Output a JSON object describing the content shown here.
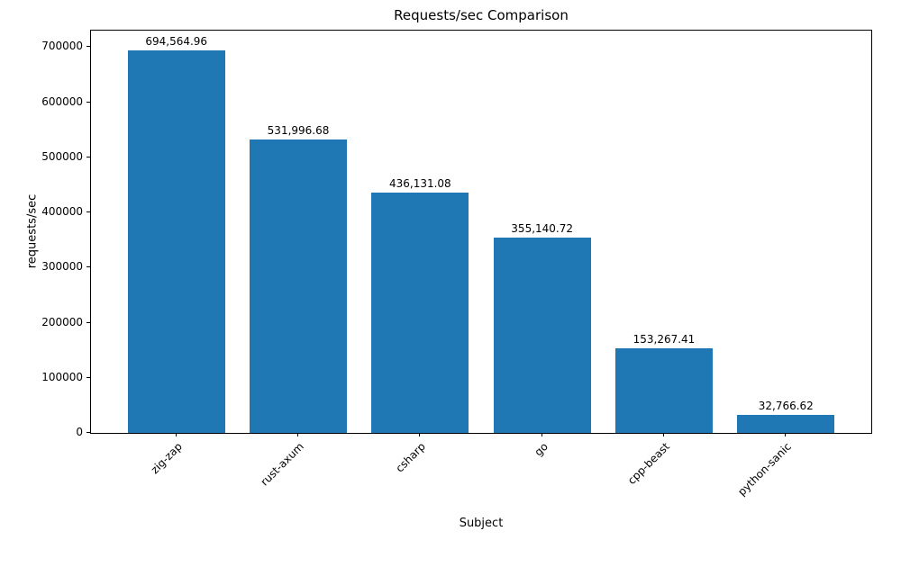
{
  "chart_data": {
    "type": "bar",
    "title": "Requests/sec Comparison",
    "xlabel": "Subject",
    "ylabel": "requests/sec",
    "categories": [
      "zig-zap",
      "rust-axum",
      "csharp",
      "go",
      "cpp-beast",
      "python-sanic"
    ],
    "values": [
      694564.96,
      531996.68,
      436131.08,
      355140.72,
      153267.41,
      32766.62
    ],
    "value_labels": [
      "694,564.96",
      "531,996.68",
      "436,131.08",
      "355,140.72",
      "153,267.41",
      "32,766.62"
    ],
    "yticks": [
      0,
      100000,
      200000,
      300000,
      400000,
      500000,
      600000,
      700000
    ],
    "ytick_labels": [
      "0",
      "100000",
      "200000",
      "300000",
      "400000",
      "500000",
      "600000",
      "700000"
    ],
    "ylim": [
      0,
      730000
    ],
    "bar_color": "#1f77b4",
    "bar_width_fraction": 0.8,
    "x_edge_margin": 0.7,
    "tick_label_rotation": 45,
    "grid": false,
    "legend": "none"
  }
}
